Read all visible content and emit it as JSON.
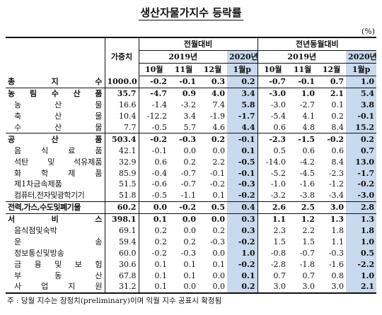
{
  "title": "생산자물가지수 등락률",
  "unit": "(%)",
  "headers": {
    "weight": "가중치",
    "mom": "전월대비",
    "yoy": "전년동월대비",
    "y2019": "2019년",
    "y2020": "2020년",
    "oct": "10월",
    "nov": "11월",
    "dec": "12월",
    "jan": "1월p"
  },
  "rows": [
    {
      "label": "총 지 수",
      "w": "1000.0",
      "m": [
        "-0.2",
        "-0.1",
        "0.3",
        "0.2"
      ],
      "y": [
        "-0.7",
        "-0.1",
        "0.7",
        "1.0"
      ],
      "bold": true
    },
    {
      "label": "농 림 수 산 품",
      "w": "35.7",
      "m": [
        "-4.7",
        "0.9",
        "4.0",
        "3.4"
      ],
      "y": [
        "-3.0",
        "1.0",
        "2.1",
        "5.4"
      ],
      "bold": true
    },
    {
      "label": "농 산 물",
      "w": "16.6",
      "m": [
        "-1.4",
        "-3.2",
        "7.4",
        "5.8"
      ],
      "y": [
        "-3.0",
        "-2.7",
        "0.1",
        "3.8"
      ],
      "ind": true
    },
    {
      "label": "축 산 물",
      "w": "10.4",
      "m": [
        "-12.2",
        "3.4",
        "-1.9",
        "-1.7"
      ],
      "y": [
        "-5.4",
        "4.1",
        "0.2",
        "-0.1"
      ],
      "ind": true
    },
    {
      "label": "수 산 물",
      "w": "7.7",
      "m": [
        "-0.5",
        "5.7",
        "4.6",
        "4.4"
      ],
      "y": [
        "0.6",
        "4.8",
        "8.4",
        "15.2"
      ],
      "ind": true
    },
    {
      "label": "공 산 품",
      "w": "503.4",
      "m": [
        "-0.2",
        "-0.3",
        "0.2",
        "-0.1"
      ],
      "y": [
        "-2.3",
        "-1.5",
        "-0.2",
        "0.2"
      ],
      "bold": true
    },
    {
      "label": "음 식 료 품",
      "w": "42.1",
      "m": [
        "-0.1",
        "0.0",
        "0.0",
        "0.1"
      ],
      "y": [
        "0.5",
        "0.6",
        "0.6",
        "0.7"
      ],
      "ind": true
    },
    {
      "label": "석탄 및 석유제품",
      "w": "32.9",
      "m": [
        "0.6",
        "0.2",
        "2.2",
        "-0.5"
      ],
      "y": [
        "-14.0",
        "-4.2",
        "8.4",
        "13.0"
      ],
      "ind": true
    },
    {
      "label": "화 학 제 품",
      "w": "85.9",
      "m": [
        "-0.4",
        "-0.7",
        "-0.1",
        "-0.1"
      ],
      "y": [
        "-5.2",
        "-4.5",
        "-2.3",
        "-1.7"
      ],
      "ind": true
    },
    {
      "label": "제1차금속제품",
      "w": "51.5",
      "m": [
        "-0.6",
        "-0.7",
        "-0.2",
        "-0.3"
      ],
      "y": [
        "-1.0",
        "-1.6",
        "-1.2",
        "-0.2"
      ],
      "ind": true
    },
    {
      "label": "컴퓨터,전자및광학기기",
      "w": "51.8",
      "m": [
        "-0.5",
        "-1.1",
        "0.1",
        "-0.2"
      ],
      "y": [
        "-3.2",
        "-3.8",
        "-3.4",
        "-3.0"
      ],
      "ind": true,
      "tight": true
    },
    {
      "label": "전력,가스,수도및폐기물",
      "w": "60.2",
      "m": [
        "0.0",
        "-0.2",
        "0.5",
        "0.4"
      ],
      "y": [
        "2.6",
        "2.5",
        "3.0",
        "2.8"
      ],
      "bold": true,
      "tight": true
    },
    {
      "label": "서 비 스",
      "w": "398.1",
      "m": [
        "0.1",
        "0.0",
        "0.0",
        "0.3"
      ],
      "y": [
        "1.1",
        "1.2",
        "1.3",
        "1.3"
      ],
      "bold": true
    },
    {
      "label": "음식점및숙박",
      "w": "69.1",
      "m": [
        "0.2",
        "0.0",
        "0.2",
        "0.3"
      ],
      "y": [
        "2.3",
        "2.2",
        "1.8",
        "1.8"
      ],
      "ind": true
    },
    {
      "label": "운 송",
      "w": "59.4",
      "m": [
        "0.2",
        "0.2",
        "-0.3",
        "-0.2"
      ],
      "y": [
        "1.5",
        "1.5",
        "1.1",
        "1.0"
      ],
      "ind": true
    },
    {
      "label": "정보통신및방송",
      "w": "60.0",
      "m": [
        "-0.2",
        "-0.3",
        "0.0",
        "1.0"
      ],
      "y": [
        "-0.8",
        "-0.7",
        "-0.3",
        "0.5"
      ],
      "ind": true
    },
    {
      "label": "금 융 및 보 험",
      "w": "30.6",
      "m": [
        "0.1",
        "0.1",
        "0.1",
        "-0.2"
      ],
      "y": [
        "-2.8",
        "-1.8",
        "-1.6",
        "-2.2"
      ],
      "ind": true
    },
    {
      "label": "부 동 산",
      "w": "67.8",
      "m": [
        "0.1",
        "0.1",
        "0.0",
        "0.1"
      ],
      "y": [
        "0.7",
        "0.7",
        "0.8",
        "1.0"
      ],
      "ind": true
    },
    {
      "label": "사 업 지 원",
      "w": "31.2",
      "m": [
        "0.1",
        "0.0",
        "0.0",
        "0.2"
      ],
      "y": [
        "3.0",
        "3.0",
        "3.0",
        "2.1"
      ],
      "ind": true
    }
  ],
  "note": "주 : 당월 지수는 잠정치(preliminary)이며 익월 지수 공표시 확정됨",
  "colors": {
    "highlight": "#c9d9ee"
  }
}
